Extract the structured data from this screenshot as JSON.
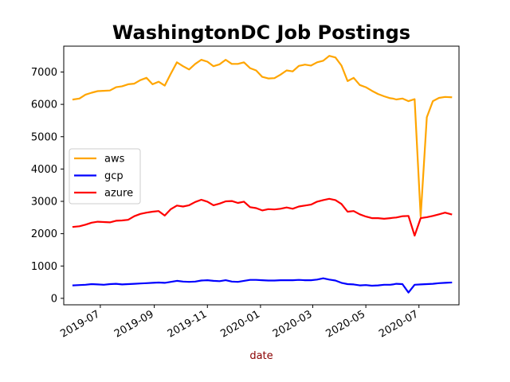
{
  "chart_data": {
    "type": "line",
    "title": "WashingtonDC Job Postings",
    "xlabel": "date",
    "ylabel": "",
    "ylim": [
      -200,
      7800
    ],
    "xlim": [
      "2019-05-20",
      "2020-08-16"
    ],
    "yticks": [
      0,
      1000,
      2000,
      3000,
      4000,
      5000,
      6000,
      7000
    ],
    "xticks": [
      "2019-07-01",
      "2019-09-01",
      "2019-11-01",
      "2020-01-01",
      "2020-03-01",
      "2020-05-01",
      "2020-07-01"
    ],
    "xtick_labels": [
      "2019-07",
      "2019-09",
      "2019-11",
      "2020-01",
      "2020-03",
      "2020-05",
      "2020-07"
    ],
    "legend_position": "center-left",
    "grid": false,
    "x": [
      "2019-05-31",
      "2019-06-07",
      "2019-06-14",
      "2019-06-21",
      "2019-06-28",
      "2019-07-05",
      "2019-07-12",
      "2019-07-19",
      "2019-07-26",
      "2019-08-02",
      "2019-08-09",
      "2019-08-16",
      "2019-08-23",
      "2019-08-30",
      "2019-09-06",
      "2019-09-13",
      "2019-09-20",
      "2019-09-27",
      "2019-10-04",
      "2019-10-11",
      "2019-10-18",
      "2019-10-25",
      "2019-11-01",
      "2019-11-08",
      "2019-11-15",
      "2019-11-22",
      "2019-11-29",
      "2019-12-06",
      "2019-12-13",
      "2019-12-20",
      "2019-12-27",
      "2020-01-03",
      "2020-01-10",
      "2020-01-17",
      "2020-01-24",
      "2020-01-31",
      "2020-02-07",
      "2020-02-14",
      "2020-02-21",
      "2020-02-28",
      "2020-03-06",
      "2020-03-13",
      "2020-03-20",
      "2020-03-27",
      "2020-04-03",
      "2020-04-10",
      "2020-04-17",
      "2020-04-24",
      "2020-05-01",
      "2020-05-08",
      "2020-05-15",
      "2020-05-22",
      "2020-05-29",
      "2020-06-01",
      "2020-06-05",
      "2020-06-12",
      "2020-06-19",
      "2020-06-26",
      "2020-07-03",
      "2020-07-10",
      "2020-07-17",
      "2020-07-24",
      "2020-07-31",
      "2020-08-07"
    ],
    "series": [
      {
        "name": "aws",
        "color": "#ffa500",
        "values": [
          6150,
          6180,
          6300,
          6360,
          6410,
          6420,
          6430,
          6530,
          6560,
          6620,
          6640,
          6750,
          6820,
          6620,
          6700,
          6580,
          6950,
          7300,
          7180,
          7080,
          7250,
          7380,
          7320,
          7180,
          7240,
          7380,
          7250,
          7250,
          7300,
          7120,
          7050,
          6850,
          6800,
          6810,
          6920,
          7050,
          7020,
          7190,
          7230,
          7200,
          7300,
          7350,
          7500,
          7450,
          7200,
          6720,
          6820,
          6600,
          6530,
          6420,
          6320,
          6250,
          6190,
          6180,
          6150,
          6180,
          6100,
          6160,
          2530,
          5600,
          6100,
          6200,
          6230,
          6220
        ]
      },
      {
        "name": "gcp",
        "color": "#0000ff",
        "values": [
          400,
          410,
          420,
          440,
          430,
          420,
          440,
          450,
          430,
          440,
          450,
          460,
          470,
          480,
          490,
          480,
          510,
          540,
          520,
          510,
          520,
          550,
          560,
          540,
          530,
          560,
          520,
          510,
          540,
          570,
          570,
          560,
          550,
          550,
          560,
          560,
          560,
          570,
          560,
          560,
          580,
          620,
          580,
          550,
          480,
          440,
          430,
          400,
          410,
          390,
          400,
          420,
          420,
          430,
          450,
          440,
          180,
          420,
          430,
          440,
          450,
          470,
          480,
          490
        ]
      },
      {
        "name": "azure",
        "color": "#ff0000",
        "values": [
          2210,
          2230,
          2280,
          2340,
          2370,
          2360,
          2350,
          2400,
          2410,
          2430,
          2540,
          2610,
          2650,
          2680,
          2700,
          2560,
          2760,
          2870,
          2840,
          2880,
          2980,
          3050,
          2990,
          2880,
          2930,
          3000,
          3010,
          2950,
          2990,
          2820,
          2790,
          2720,
          2760,
          2750,
          2770,
          2810,
          2770,
          2840,
          2870,
          2900,
          2990,
          3040,
          3080,
          3040,
          2920,
          2680,
          2700,
          2600,
          2530,
          2480,
          2480,
          2460,
          2480,
          2490,
          2500,
          2540,
          2550,
          1940,
          2480,
          2510,
          2550,
          2600,
          2650,
          2600
        ]
      }
    ]
  }
}
